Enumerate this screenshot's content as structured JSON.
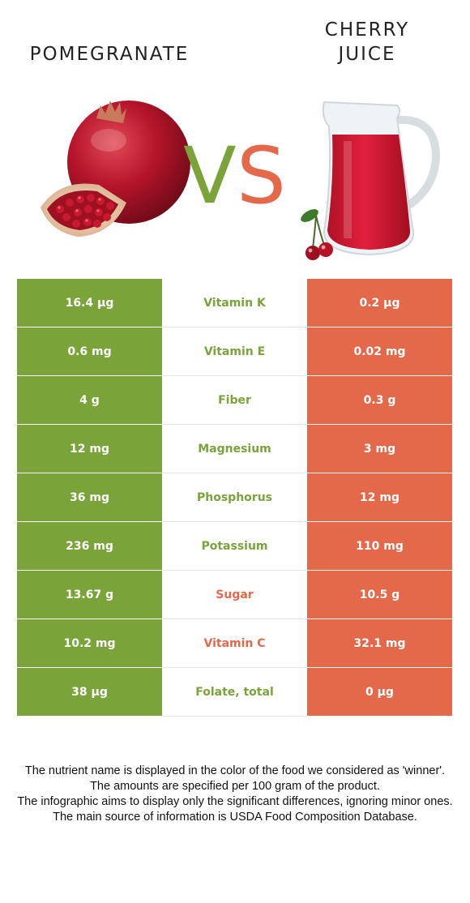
{
  "header": {
    "left_food": "POMEGRANATE",
    "right_food": "CHERRY\nJUICE",
    "vs_label": "VS"
  },
  "colors": {
    "left_winner": "#7aa33a",
    "right_winner": "#e4694a"
  },
  "rows": [
    {
      "left": "16.4 µg",
      "nutrient": "Vitamin K",
      "right": "0.2 µg",
      "winner": "left"
    },
    {
      "left": "0.6 mg",
      "nutrient": "Vitamin E",
      "right": "0.02 mg",
      "winner": "left"
    },
    {
      "left": "4 g",
      "nutrient": "Fiber",
      "right": "0.3 g",
      "winner": "left"
    },
    {
      "left": "12 mg",
      "nutrient": "Magnesium",
      "right": "3 mg",
      "winner": "left"
    },
    {
      "left": "36 mg",
      "nutrient": "Phosphorus",
      "right": "12 mg",
      "winner": "left"
    },
    {
      "left": "236 mg",
      "nutrient": "Potassium",
      "right": "110 mg",
      "winner": "left"
    },
    {
      "left": "13.67 g",
      "nutrient": "Sugar",
      "right": "10.5 g",
      "winner": "right"
    },
    {
      "left": "10.2 mg",
      "nutrient": "Vitamin C",
      "right": "32.1 mg",
      "winner": "right"
    },
    {
      "left": "38 µg",
      "nutrient": "Folate, total",
      "right": "0 µg",
      "winner": "left"
    }
  ],
  "footer": {
    "line1": "The nutrient name is displayed in the color of the food we considered as 'winner'.",
    "line2": "The amounts are specified per 100 gram of the product.",
    "line3": "The infographic aims to display only the significant differences, ignoring minor ones.",
    "line4": "The main source of information is USDA Food Composition Database."
  }
}
